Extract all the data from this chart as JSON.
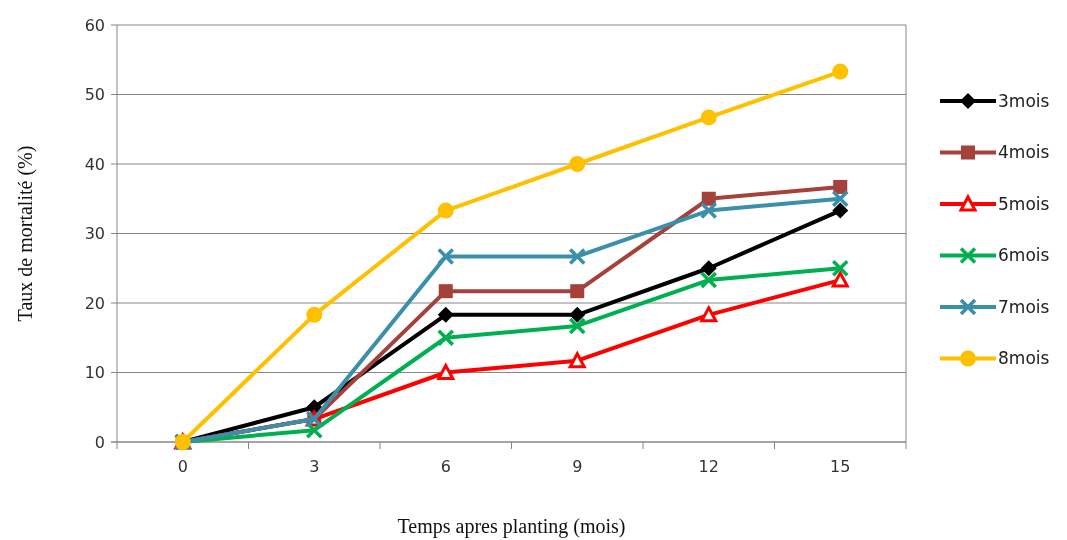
{
  "chart_data": {
    "type": "line",
    "xlabel": "Temps apres planting (mois)",
    "ylabel": "Taux de mortalité (%)",
    "categories": [
      "0",
      "3",
      "6",
      "9",
      "12",
      "15"
    ],
    "ylim": [
      0,
      60
    ],
    "yticks": [
      0,
      10,
      20,
      30,
      40,
      50,
      60
    ],
    "grid": "y",
    "legend": "right",
    "series": [
      {
        "name": "3mois",
        "color": "#000000",
        "marker": "diamond",
        "values": [
          0,
          5,
          18.3,
          18.3,
          25,
          33.3
        ]
      },
      {
        "name": "4mois",
        "color": "#a5403b",
        "marker": "square",
        "values": [
          0,
          3.3,
          21.7,
          21.7,
          35,
          36.7
        ]
      },
      {
        "name": "5mois",
        "color": "#ff0000",
        "marker": "triangle",
        "values": [
          0,
          3.3,
          10,
          11.7,
          18.3,
          23.3
        ]
      },
      {
        "name": "6mois",
        "color": "#00b050",
        "marker": "cross",
        "values": [
          0,
          1.7,
          15,
          16.7,
          23.3,
          25
        ]
      },
      {
        "name": "7mois",
        "color": "#3a8fab",
        "marker": "cross",
        "values": [
          0,
          3.3,
          26.7,
          26.7,
          33.3,
          35
        ]
      },
      {
        "name": "8mois",
        "color": "#ffc000",
        "marker": "circle",
        "values": [
          0,
          18.3,
          33.3,
          40,
          46.7,
          53.3
        ]
      }
    ]
  }
}
